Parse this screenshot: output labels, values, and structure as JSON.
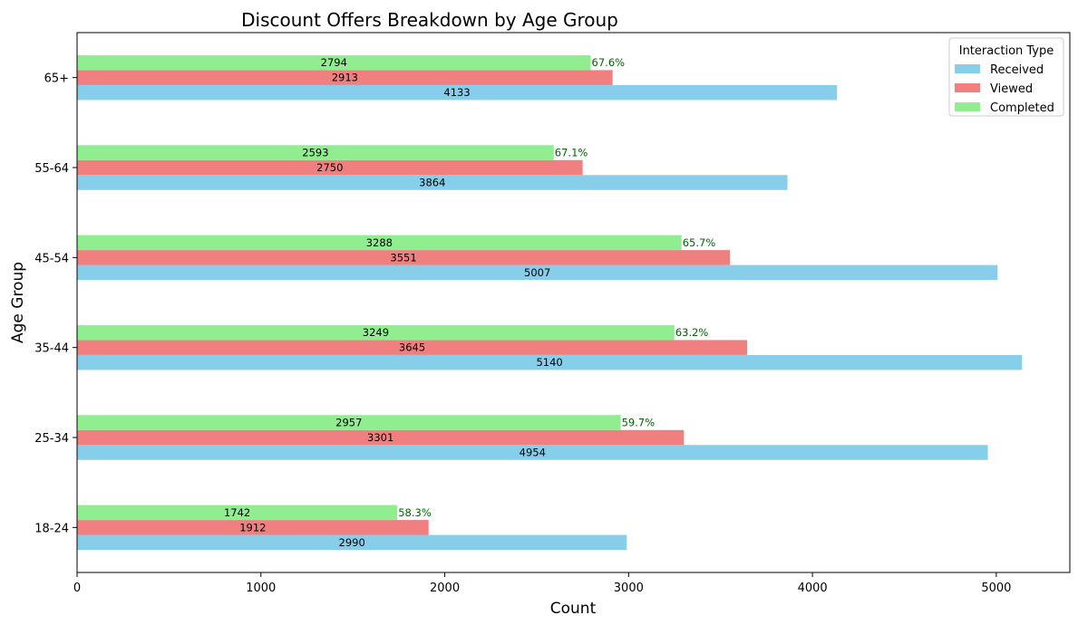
{
  "chart_data": {
    "type": "bar",
    "orientation": "horizontal",
    "title": "Discount Offers Breakdown by Age Group",
    "xlabel": "Count",
    "ylabel": "Age Group",
    "xlim": [
      0,
      5400
    ],
    "xticks": [
      0,
      1000,
      2000,
      3000,
      4000,
      5000
    ],
    "grid": false,
    "categories": [
      "18-24",
      "25-34",
      "35-44",
      "45-54",
      "55-64",
      "65+"
    ],
    "series": [
      {
        "name": "Received",
        "color": "#87ceeb",
        "values": [
          2990,
          4954,
          5140,
          5007,
          3864,
          4133
        ]
      },
      {
        "name": "Viewed",
        "color": "#f08080",
        "values": [
          1912,
          3301,
          3645,
          3551,
          2750,
          2913
        ]
      },
      {
        "name": "Completed",
        "color": "#90ee90",
        "values": [
          1742,
          2957,
          3249,
          3288,
          2593,
          2794
        ]
      }
    ],
    "completion_rates": [
      "58.3%",
      "59.7%",
      "63.2%",
      "65.7%",
      "67.1%",
      "67.6%"
    ],
    "rate_label_color": "#006400",
    "legend": {
      "title": "Interaction Type",
      "placement": "upper-right"
    }
  }
}
